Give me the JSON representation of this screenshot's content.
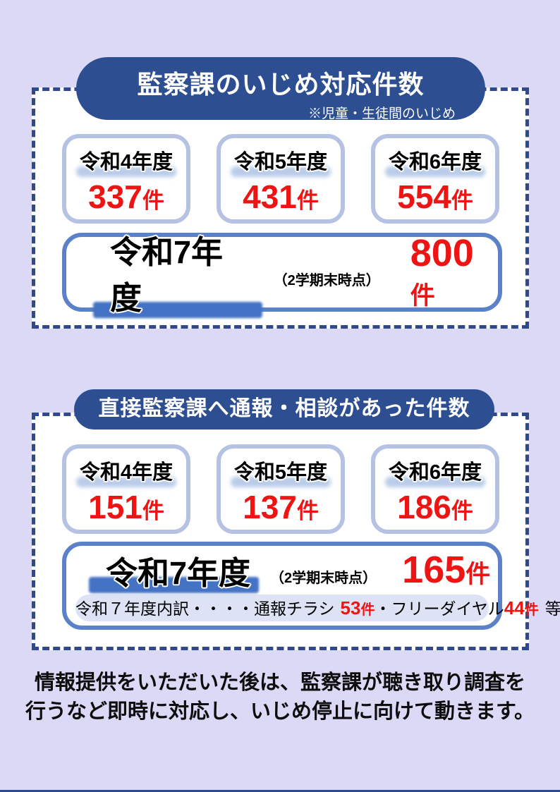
{
  "page": {
    "bg_color": "#dcd9f6",
    "accent_dark_blue": "#2e4e92",
    "dashed_border_color": "#2e4a8c",
    "stat_box_border_color": "#b6c2e4",
    "wide_box_border_color": "#5b82c8",
    "highlight_bar_color": "#4472c4",
    "number_red": "#ee1414"
  },
  "section1": {
    "title": "監察課のいじめ対応件数",
    "subtitle": "※児童・生徒間のいじめ",
    "stats": [
      {
        "year": "令和4年度",
        "count": "337",
        "unit": "件"
      },
      {
        "year": "令和5年度",
        "count": "431",
        "unit": "件"
      },
      {
        "year": "令和6年度",
        "count": "554",
        "unit": "件"
      }
    ],
    "current": {
      "year": "令和7年度",
      "note": "（2学期末時点）",
      "count": "800",
      "unit": "件"
    }
  },
  "section2": {
    "title": "直接監察課へ通報・相談があった件数",
    "stats": [
      {
        "year": "令和4年度",
        "count": "151",
        "unit": "件"
      },
      {
        "year": "令和5年度",
        "count": "137",
        "unit": "件"
      },
      {
        "year": "令和6年度",
        "count": "186",
        "unit": "件"
      }
    ],
    "current": {
      "year": "令和7年度",
      "note": "（2学期末時点）",
      "count": "165",
      "unit": "件"
    },
    "breakdown": {
      "prefix": "令和７年度内訳・・・・通報チラシ",
      "value1": "53",
      "unit1": "件",
      "mid": "・フリーダイヤル",
      "value2": "44",
      "unit2": "件",
      "suffix": "等"
    }
  },
  "footer": {
    "line1": "情報提供をいただいた後は、監察課が聴き取り調査を",
    "line2": "行うなど即時に対応し、いじめ停止に向けて動きます。"
  }
}
